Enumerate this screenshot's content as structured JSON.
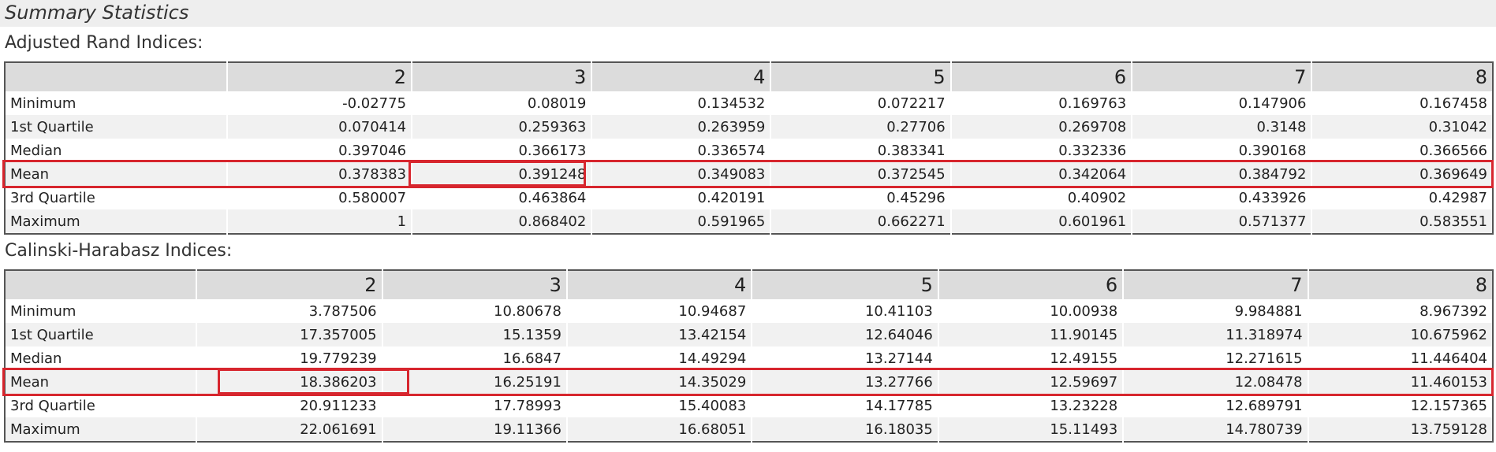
{
  "header": {
    "title": "Summary Statistics"
  },
  "adjusted_rand": {
    "label": "Adjusted Rand Indices:",
    "columns": [
      "2",
      "3",
      "4",
      "5",
      "6",
      "7",
      "8"
    ],
    "rows": [
      {
        "label": "Minimum",
        "values": [
          "-0.02775",
          "0.08019",
          "0.134532",
          "0.072217",
          "0.169763",
          "0.147906",
          "0.167458"
        ]
      },
      {
        "label": "1st Quartile",
        "values": [
          "0.070414",
          "0.259363",
          "0.263959",
          "0.27706",
          "0.269708",
          "0.3148",
          "0.31042"
        ]
      },
      {
        "label": "Median",
        "values": [
          "0.397046",
          "0.366173",
          "0.336574",
          "0.383341",
          "0.332336",
          "0.390168",
          "0.366566"
        ]
      },
      {
        "label": "Mean",
        "values": [
          "0.378383",
          "0.391248",
          "0.349083",
          "0.372545",
          "0.342064",
          "0.384792",
          "0.369649"
        ]
      },
      {
        "label": "3rd Quartile",
        "values": [
          "0.580007",
          "0.463864",
          "0.420191",
          "0.45296",
          "0.40902",
          "0.433926",
          "0.42987"
        ]
      },
      {
        "label": "Maximum",
        "values": [
          "1",
          "0.868402",
          "0.591965",
          "0.662271",
          "0.601961",
          "0.571377",
          "0.583551"
        ]
      }
    ]
  },
  "calinski": {
    "label": "Calinski-Harabasz Indices:",
    "columns": [
      "2",
      "3",
      "4",
      "5",
      "6",
      "7",
      "8"
    ],
    "rows": [
      {
        "label": "Minimum",
        "values": [
          "3.787506",
          "10.80678",
          "10.94687",
          "10.41103",
          "10.00938",
          "9.984881",
          "8.967392"
        ]
      },
      {
        "label": "1st Quartile",
        "values": [
          "17.357005",
          "15.1359",
          "13.42154",
          "12.64046",
          "11.90145",
          "11.318974",
          "10.675962"
        ]
      },
      {
        "label": "Median",
        "values": [
          "19.779239",
          "16.6847",
          "14.49294",
          "13.27144",
          "12.49155",
          "12.271615",
          "11.446404"
        ]
      },
      {
        "label": "Mean",
        "values": [
          "18.386203",
          "16.25191",
          "14.35029",
          "13.27766",
          "12.59697",
          "12.08478",
          "11.460153"
        ]
      },
      {
        "label": "3rd Quartile",
        "values": [
          "20.911233",
          "17.78993",
          "15.40083",
          "14.17785",
          "13.23228",
          "12.689791",
          "12.157365"
        ]
      },
      {
        "label": "Maximum",
        "values": [
          "22.061691",
          "19.11366",
          "16.68051",
          "16.18035",
          "15.11493",
          "14.780739",
          "13.759128"
        ]
      }
    ]
  },
  "highlight_color": "#d7262e"
}
